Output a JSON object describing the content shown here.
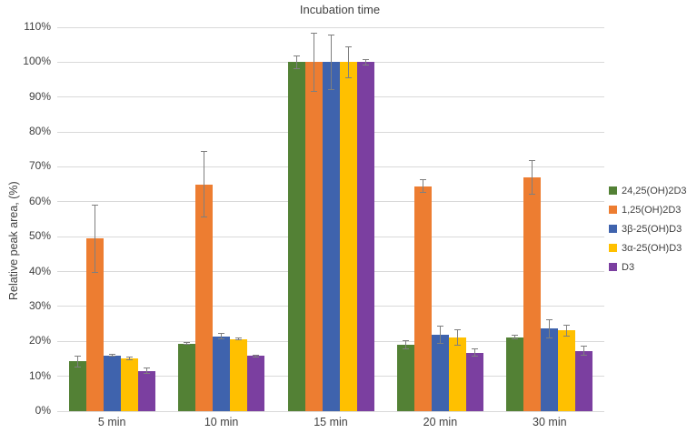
{
  "chart_data": {
    "type": "bar",
    "title": "Incubation time",
    "xlabel": "",
    "ylabel": "Relative peak area, (%)",
    "categories": [
      "5 min",
      "10 min",
      "15 min",
      "20 min",
      "30 min"
    ],
    "series": [
      {
        "name": "24,25(OH)2D3",
        "color": "#538135",
        "values": [
          14.3,
          19.4,
          100,
          19.1,
          21.2
        ],
        "errors": [
          1.7,
          0.5,
          2.0,
          1.3,
          0.7
        ]
      },
      {
        "name": "1,25(OH)2D3",
        "color": "#ED7D31",
        "values": [
          49.4,
          65.0,
          100,
          64.5,
          67.0
        ],
        "errors": [
          9.7,
          9.5,
          8.5,
          2.0,
          5.0
        ]
      },
      {
        "name": "3β-25(OH)D3",
        "color": "#3F63AD",
        "values": [
          16.0,
          21.5,
          100,
          21.9,
          23.6
        ],
        "errors": [
          0.4,
          0.9,
          8.0,
          2.6,
          2.7
        ]
      },
      {
        "name": "3α-25(OH)D3",
        "color": "#FFC000",
        "values": [
          15.1,
          20.7,
          100,
          21.1,
          23.1
        ],
        "errors": [
          0.6,
          0.3,
          4.5,
          2.4,
          1.6
        ]
      },
      {
        "name": "D3",
        "color": "#7B3FA0",
        "values": [
          11.5,
          15.8,
          100,
          16.8,
          17.3
        ],
        "errors": [
          0.9,
          0.3,
          1.0,
          1.1,
          1.5
        ]
      }
    ],
    "ylim": [
      0,
      110
    ],
    "ytick_step": 10,
    "ytick_suffix": "%",
    "grid": true,
    "legend_position": "right",
    "colors": {
      "gridline": "#d9d9d9",
      "error_bar": "#7f7f7f",
      "text": "#404040",
      "background": "#ffffff"
    }
  }
}
